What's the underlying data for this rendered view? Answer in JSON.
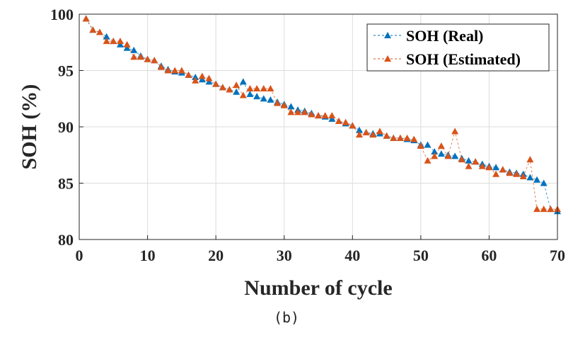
{
  "caption": "(b)",
  "chart_data": {
    "type": "line",
    "xlabel": "Number of cycle",
    "ylabel": "SOH (%)",
    "xlim": [
      0,
      70
    ],
    "ylim": [
      80,
      100
    ],
    "xticks": [
      0,
      10,
      20,
      30,
      40,
      50,
      60,
      70
    ],
    "yticks": [
      80,
      85,
      90,
      95,
      100
    ],
    "grid": true,
    "legend_position": "top-right",
    "x": [
      1,
      2,
      3,
      4,
      5,
      6,
      7,
      8,
      9,
      10,
      11,
      12,
      13,
      14,
      15,
      16,
      17,
      18,
      19,
      20,
      21,
      22,
      23,
      24,
      25,
      26,
      27,
      28,
      29,
      30,
      31,
      32,
      33,
      34,
      35,
      36,
      37,
      38,
      39,
      40,
      41,
      42,
      43,
      44,
      45,
      46,
      47,
      48,
      49,
      50,
      51,
      52,
      53,
      54,
      55,
      56,
      57,
      58,
      59,
      60,
      61,
      62,
      63,
      64,
      65,
      66,
      67,
      68,
      69,
      70
    ],
    "series": [
      {
        "name": "SOH (Real)",
        "color": "#0072BD",
        "marker": "triangle",
        "line_style": "dashed",
        "values": [
          99.6,
          98.6,
          98.4,
          98.0,
          97.6,
          97.3,
          97.0,
          96.8,
          96.3,
          96.0,
          95.9,
          95.4,
          95.1,
          94.9,
          94.8,
          94.6,
          94.4,
          94.2,
          94.0,
          93.8,
          93.5,
          93.3,
          93.1,
          94.0,
          92.9,
          92.7,
          92.5,
          92.4,
          92.2,
          92.0,
          91.8,
          91.5,
          91.4,
          91.2,
          91.0,
          90.9,
          90.7,
          90.5,
          90.3,
          90.1,
          89.7,
          89.5,
          89.4,
          89.4,
          89.2,
          89.0,
          89.0,
          88.9,
          88.8,
          88.4,
          88.4,
          87.8,
          87.6,
          87.5,
          87.4,
          87.2,
          87.0,
          86.9,
          86.7,
          86.5,
          86.4,
          86.2,
          86.0,
          85.9,
          85.8,
          85.5,
          85.3,
          85.0,
          82.7,
          82.5
        ]
      },
      {
        "name": "SOH (Estimated)",
        "color": "#D95319",
        "marker": "triangle",
        "line_style": "dashed",
        "values": [
          99.6,
          98.6,
          98.4,
          97.6,
          97.6,
          97.6,
          97.3,
          96.2,
          96.2,
          96.0,
          95.9,
          95.3,
          95.0,
          95.0,
          95.0,
          94.6,
          94.1,
          94.5,
          94.3,
          93.8,
          93.5,
          93.3,
          93.7,
          92.8,
          93.4,
          93.4,
          93.4,
          93.4,
          92.1,
          91.9,
          91.3,
          91.3,
          91.3,
          91.1,
          91.0,
          91.0,
          91.0,
          90.5,
          90.4,
          90.1,
          89.3,
          89.5,
          89.3,
          89.6,
          89.2,
          89.0,
          89.0,
          89.0,
          88.9,
          88.3,
          87.0,
          87.4,
          88.3,
          87.4,
          89.6,
          87.1,
          86.5,
          86.9,
          86.5,
          86.4,
          85.8,
          86.2,
          85.9,
          85.8,
          85.6,
          87.1,
          82.7,
          82.7,
          82.7,
          82.7
        ]
      }
    ]
  }
}
